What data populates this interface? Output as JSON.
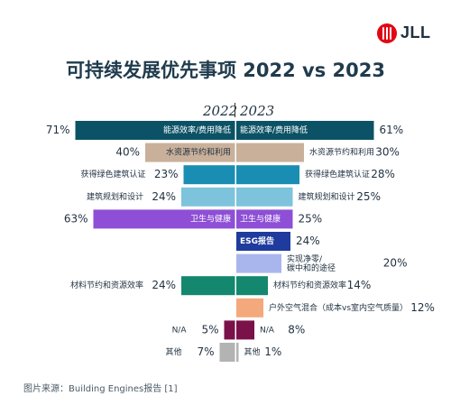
{
  "logo": {
    "text": "JLL"
  },
  "title": "可持续发展优先事项 2022 vs 2023",
  "source": "图片来源：Building Engines报告 [1]",
  "chart_data": {
    "type": "bar",
    "layout": "diverging horizontal bar (butterfly)",
    "years": [
      "2022",
      "2023"
    ],
    "rows": [
      {
        "category": "能源效率/费用降低",
        "color": "#0c5266",
        "v2022": 71,
        "v2023": 61,
        "label2022": "能源效率/费用降低",
        "label2023": "能源效率/费用降低"
      },
      {
        "category": "水资源节约和利用",
        "color": "#c9b09b",
        "v2022": 40,
        "v2023": 30,
        "label2022": "水资源节约和利用",
        "label2023": "水资源节约和利用"
      },
      {
        "category": "获得绿色建筑认证",
        "color": "#1a8db3",
        "v2022": 23,
        "v2023": 28,
        "label2022": "获得绿色建筑认证",
        "label2023": "获得绿色建筑认证"
      },
      {
        "category": "建筑规划和设计",
        "color": "#7ec3dc",
        "v2022": 24,
        "v2023": 25,
        "label2022": "建筑规划和设计",
        "label2023": "建筑规划和设计"
      },
      {
        "category": "卫生与健康",
        "color": "#8e4fd6",
        "v2022": 63,
        "v2023": 25,
        "label2022": "卫生与健康",
        "label2023": "卫生与健康"
      },
      {
        "category": "ESG报告",
        "color": "#1f3b9e",
        "v2022": null,
        "v2023": 24,
        "label2022": "",
        "label2023": "ESG报告"
      },
      {
        "category": "实现净零/碳中和的途径",
        "color": "#a9b6ee",
        "v2022": null,
        "v2023": 20,
        "label2022": "",
        "label2023": "实现净零/\n碳中和的途径"
      },
      {
        "category": "材料节约和资源效率",
        "color": "#14876f",
        "v2022": 24,
        "v2023": 14,
        "label2022": "材料节约和资源效率",
        "label2023": "材料节约和资源效率"
      },
      {
        "category": "户外空气混合（成本vs室内空气质量）",
        "color": "#f4a97c",
        "v2022": null,
        "v2023": 12,
        "label2022": "",
        "label2023": "户外空气混合（成本vs室内空气质量）"
      },
      {
        "category": "N/A",
        "color": "#7a1148",
        "v2022": 5,
        "v2023": 8,
        "label2022": "N/A",
        "label2023": "N/A"
      },
      {
        "category": "其他",
        "color": "#b3b3b3",
        "v2022": 7,
        "v2023": 1,
        "label2022": "其他",
        "label2023": "其他"
      }
    ]
  }
}
